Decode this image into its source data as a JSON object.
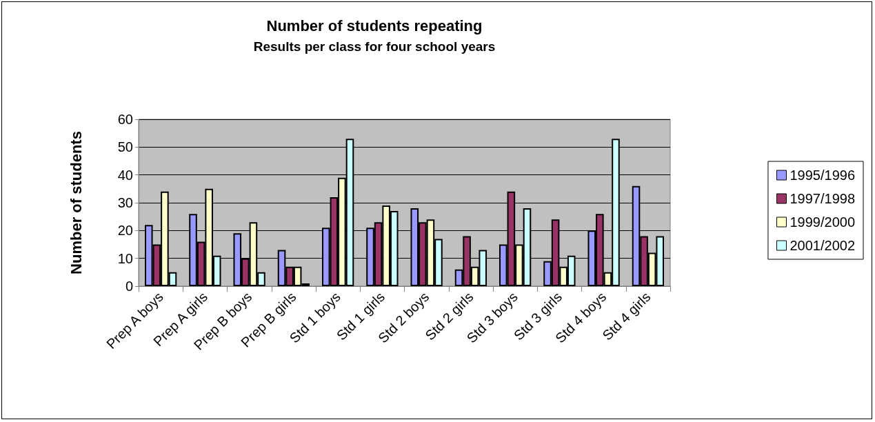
{
  "chart_data": {
    "type": "bar",
    "title": "Number of students repeating",
    "subtitle": "Results per class for four school years",
    "ylabel": "Number of students",
    "categories": [
      "Prep A boys",
      "Prep A girls",
      "Prep B boys",
      "Prep B girls",
      "Std 1 boys",
      "Std 1 girls",
      "Std 2 boys",
      "Std 2 girls",
      "Std 3 boys",
      "Std 3 girls",
      "Std 4 boys",
      "Std 4 girls"
    ],
    "series": [
      {
        "name": "1995/1996",
        "color": "#9999ff",
        "values": [
          22,
          26,
          19,
          13,
          21,
          21,
          28,
          6,
          15,
          9,
          20,
          36
        ]
      },
      {
        "name": "1997/1998",
        "color": "#993366",
        "values": [
          15,
          16,
          10,
          7,
          32,
          23,
          23,
          18,
          34,
          24,
          26,
          18
        ]
      },
      {
        "name": "1999/2000",
        "color": "#ffffcc",
        "values": [
          34,
          35,
          23,
          7,
          39,
          29,
          24,
          7,
          15,
          7,
          5,
          12
        ]
      },
      {
        "name": "2001/2002",
        "color": "#ccffff",
        "values": [
          5,
          11,
          5,
          1,
          53,
          27,
          17,
          13,
          28,
          11,
          53,
          18
        ]
      }
    ],
    "ylim": [
      0,
      60
    ],
    "yticks": [
      0,
      10,
      20,
      30,
      40,
      50,
      60
    ],
    "grid": "y",
    "legend": "right"
  }
}
